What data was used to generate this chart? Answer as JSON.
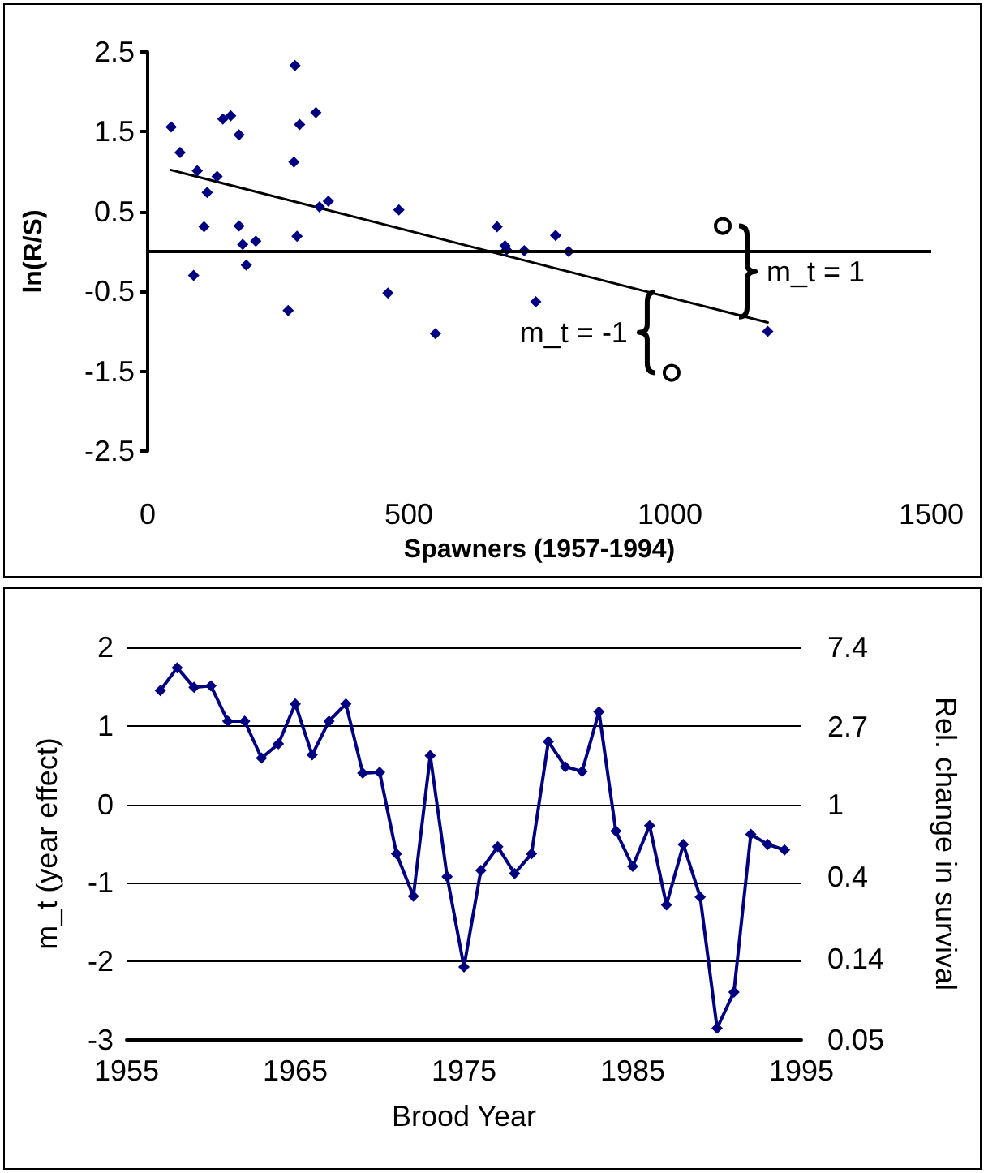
{
  "chart_data": [
    {
      "type": "scatter",
      "xlabel": "Spawners (1957-1994)",
      "ylabel": "ln(R/S)",
      "xlim": [
        0,
        1500
      ],
      "xticks": [
        0,
        500,
        1000,
        1500
      ],
      "ylim": [
        -2.5,
        2.5
      ],
      "yticks": [
        -2.5,
        -1.5,
        -0.5,
        0.5,
        1.5,
        2.5
      ],
      "grid": false,
      "ref_lines": [
        {
          "axis": "y",
          "value": 0,
          "color": "#000000"
        }
      ],
      "annotations": [
        {
          "text": "m_t = 1",
          "x": 1101,
          "y": 0.32
        },
        {
          "text": "m_t = -1",
          "x": 1003,
          "y": -1.52
        }
      ],
      "series": [
        {
          "type": "scatter",
          "color": "#000080",
          "marker": "diamond",
          "x": [
            45,
            62,
            95,
            88,
            108,
            114,
            133,
            144,
            159,
            175,
            175,
            182,
            189,
            207,
            269,
            280,
            282,
            286,
            291,
            322,
            329,
            346,
            460,
            481,
            551,
            669,
            684,
            687,
            721,
            781,
            806,
            743,
            1187
          ],
          "values": [
            1.56,
            1.24,
            1.01,
            -0.3,
            0.31,
            0.74,
            0.94,
            1.66,
            1.7,
            1.46,
            0.32,
            0.09,
            -0.17,
            0.13,
            -0.74,
            1.12,
            2.33,
            0.19,
            1.59,
            1.74,
            0.56,
            0.63,
            -0.52,
            0.52,
            -1.03,
            0.31,
            0.07,
            0.02,
            0.01,
            0.2,
            0.0,
            -0.63,
            -1.0
          ]
        },
        {
          "type": "scatter",
          "color": "#000000",
          "marker": "circle",
          "x": [
            1101,
            1003
          ],
          "values": [
            0.32,
            -1.52
          ]
        },
        {
          "type": "line",
          "color": "#000000",
          "marker": "none",
          "x": [
            45,
            1187
          ],
          "values": [
            1.02,
            -0.89
          ]
        }
      ]
    },
    {
      "type": "line",
      "xlabel": "Brood Year",
      "ylabel": "m_t (year effect)",
      "y2label": "Rel. change in survival",
      "xlim": [
        1955,
        1995
      ],
      "xticks": [
        1955,
        1965,
        1975,
        1985,
        1995
      ],
      "ylim": [
        -3,
        2
      ],
      "yticks": [
        -3,
        -2,
        -1,
        0,
        1,
        2
      ],
      "y2lim": [
        0.05,
        7.4
      ],
      "y2ticks": [
        0.05,
        0.14,
        0.4,
        1,
        2.7,
        7.4
      ],
      "log": "y2",
      "grid": "y",
      "marker": "diamond",
      "line_style": "solid",
      "series": [
        {
          "color": "#000080",
          "x": [
            1957,
            1958,
            1959,
            1960,
            1961,
            1962,
            1963,
            1964,
            1965,
            1966,
            1967,
            1968,
            1969,
            1970,
            1971,
            1972,
            1973,
            1974,
            1975,
            1976,
            1977,
            1978,
            1979,
            1980,
            1981,
            1982,
            1983,
            1984,
            1985,
            1986,
            1987,
            1988,
            1989,
            1990,
            1991,
            1992,
            1993,
            1994
          ],
          "values": [
            1.45,
            1.74,
            1.49,
            1.51,
            1.06,
            1.06,
            0.59,
            0.77,
            1.28,
            0.63,
            1.06,
            1.28,
            0.4,
            0.41,
            -0.63,
            -1.17,
            0.62,
            -0.92,
            -2.07,
            -0.84,
            -0.54,
            -0.88,
            -0.63,
            0.8,
            0.48,
            0.42,
            1.18,
            -0.34,
            -0.79,
            -0.27,
            -1.28,
            -0.51,
            -1.18,
            -2.85,
            -2.39,
            -0.38,
            -0.51,
            -0.58
          ]
        }
      ]
    }
  ]
}
